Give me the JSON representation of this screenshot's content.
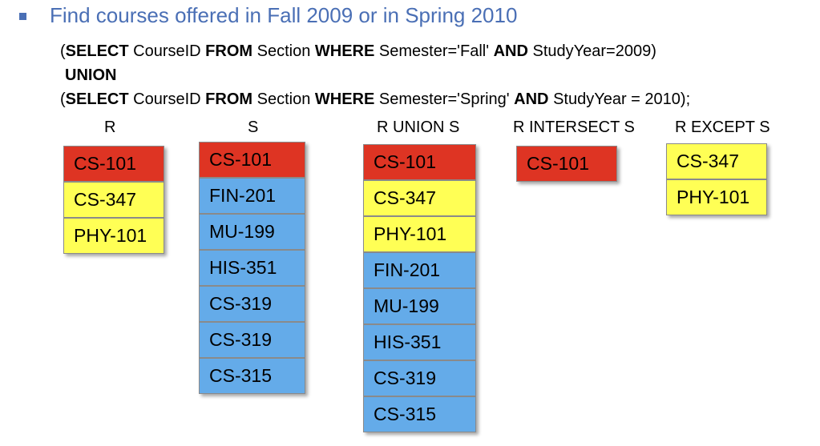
{
  "colors": {
    "red": "#de3423",
    "yellow": "#ffff55",
    "blue": "#64abe9",
    "heading": "#4a6fb5"
  },
  "heading": "Find courses offered in Fall 2009 or in Spring 2010",
  "query": {
    "line1": {
      "p0": "(",
      "k1": "SELECT",
      "p1": " CourseID ",
      "k2": "FROM",
      "p2": " Section ",
      "k3": "WHERE",
      "p3": " Semester='Fall' ",
      "k4": "AND",
      "p4": " StudyYear=2009)"
    },
    "union": "UNION",
    "line3": {
      "p0": "(",
      "k1": "SELECT",
      "p1": " CourseID ",
      "k2": "FROM",
      "p2": " Section ",
      "k3": "WHERE",
      "p3": " Semester='Spring' ",
      "k4": "AND",
      "p4": " StudyYear = 2010);"
    }
  },
  "tables": [
    {
      "label": "R",
      "rows": [
        {
          "text": "CS-101",
          "color": "red"
        },
        {
          "text": "CS-347",
          "color": "yellow"
        },
        {
          "text": "PHY-101",
          "color": "yellow"
        }
      ]
    },
    {
      "label": "S",
      "rows": [
        {
          "text": "CS-101",
          "color": "red"
        },
        {
          "text": "FIN-201",
          "color": "blue"
        },
        {
          "text": "MU-199",
          "color": "blue"
        },
        {
          "text": "HIS-351",
          "color": "blue"
        },
        {
          "text": "CS-319",
          "color": "blue"
        },
        {
          "text": "CS-319",
          "color": "blue"
        },
        {
          "text": "CS-315",
          "color": "blue"
        }
      ]
    },
    {
      "label": "R UNION S",
      "rows": [
        {
          "text": "CS-101",
          "color": "red"
        },
        {
          "text": "CS-347",
          "color": "yellow"
        },
        {
          "text": "PHY-101",
          "color": "yellow"
        },
        {
          "text": "FIN-201",
          "color": "blue"
        },
        {
          "text": "MU-199",
          "color": "blue"
        },
        {
          "text": "HIS-351",
          "color": "blue"
        },
        {
          "text": "CS-319",
          "color": "blue"
        },
        {
          "text": "CS-315",
          "color": "blue"
        }
      ]
    },
    {
      "label": "R INTERSECT S",
      "rows": [
        {
          "text": "CS-101",
          "color": "red"
        }
      ]
    },
    {
      "label": "R EXCEPT S",
      "rows": [
        {
          "text": "CS-347",
          "color": "yellow"
        },
        {
          "text": "PHY-101",
          "color": "yellow"
        }
      ]
    }
  ]
}
